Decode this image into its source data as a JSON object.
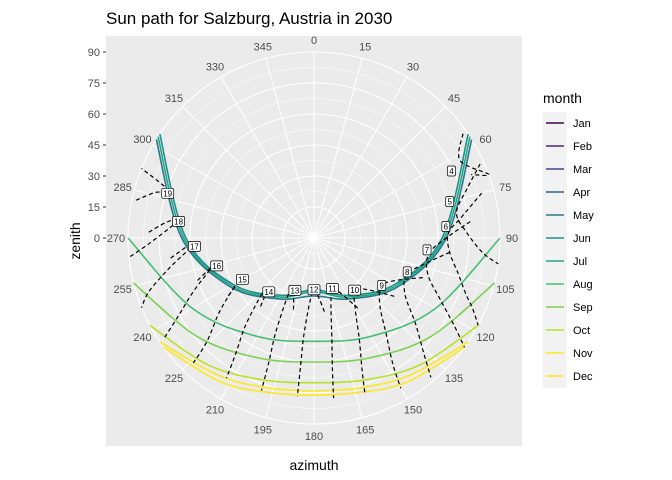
{
  "chart_data": {
    "type": "line",
    "projection": "polar",
    "title": "Sun path for Salzburg, Austria in 2030",
    "xlabel": "azimuth",
    "ylabel": "zenith",
    "azimuth_ticks": [
      "0",
      "15",
      "30",
      "45",
      "60",
      "75",
      "90",
      "105",
      "120",
      "135",
      "150",
      "165",
      "180",
      "195",
      "210",
      "225",
      "240",
      "255",
      "270",
      "285",
      "300",
      "315",
      "330",
      "345"
    ],
    "zenith_ticks": [
      "0",
      "15",
      "30",
      "45",
      "60",
      "75",
      "90"
    ],
    "legend": {
      "title": "month",
      "placement": "right"
    },
    "grid": true,
    "series": [
      {
        "name": "Jan",
        "color": "#440154"
      },
      {
        "name": "Feb",
        "color": "#482576"
      },
      {
        "name": "Mar",
        "color": "#414487"
      },
      {
        "name": "Apr",
        "color": "#35608D"
      },
      {
        "name": "May",
        "color": "#2A788E",
        "azimuth": [
          58,
          90,
          120,
          150,
          180,
          210,
          240,
          270,
          302
        ],
        "zenith": [
          90,
          64,
          47,
          34,
          28,
          34,
          47,
          64,
          90
        ]
      },
      {
        "name": "Jun",
        "color": "#21908C",
        "azimuth": [
          56,
          90,
          120,
          150,
          180,
          210,
          240,
          270,
          304
        ],
        "zenith": [
          90,
          62,
          45,
          32,
          25,
          32,
          45,
          62,
          90
        ]
      },
      {
        "name": "Jul",
        "color": "#22A884",
        "azimuth": [
          57,
          90,
          120,
          150,
          180,
          210,
          240,
          270,
          303
        ],
        "zenith": [
          90,
          63,
          46,
          33,
          26,
          33,
          46,
          63,
          90
        ]
      },
      {
        "name": "Aug",
        "color": "#43BF71",
        "azimuth": [
          90,
          120,
          150,
          180,
          210,
          240,
          270
        ],
        "zenith": [
          90,
          68,
          55,
          50,
          55,
          68,
          90
        ]
      },
      {
        "name": "Sep",
        "color": "#7AD151",
        "azimuth": [
          104,
          130,
          155,
          180,
          205,
          230,
          256
        ],
        "zenith": [
          90,
          74,
          64,
          60,
          64,
          74,
          90
        ]
      },
      {
        "name": "Oct",
        "color": "#BBDF27",
        "azimuth": [
          118,
          140,
          160,
          180,
          200,
          220,
          242
        ],
        "zenith": [
          90,
          80,
          73,
          70,
          73,
          80,
          90
        ]
      },
      {
        "name": "Nov",
        "color": "#FDE725",
        "azimuth": [
          124,
          145,
          162,
          180,
          198,
          215,
          236
        ],
        "zenith": [
          90,
          81,
          76,
          74,
          76,
          81,
          90
        ]
      },
      {
        "name": "Dec",
        "color": "#FDE725",
        "azimuth": [
          126,
          147,
          163,
          180,
          197,
          213,
          234
        ],
        "zenith": [
          90,
          83,
          78,
          76,
          78,
          83,
          90
        ]
      }
    ],
    "hour_labels": [
      {
        "label": "4",
        "azimuth": 64,
        "zenith": 74
      },
      {
        "label": "5",
        "azimuth": 75,
        "zenith": 68
      },
      {
        "label": "6",
        "azimuth": 85,
        "zenith": 64
      },
      {
        "label": "7",
        "azimuth": 96,
        "zenith": 55
      },
      {
        "label": "8",
        "azimuth": 110,
        "zenith": 48
      },
      {
        "label": "9",
        "azimuth": 125,
        "zenith": 40
      },
      {
        "label": "10",
        "azimuth": 142,
        "zenith": 32
      },
      {
        "label": "11",
        "azimuth": 160,
        "zenith": 26
      },
      {
        "label": "12",
        "azimuth": 180,
        "zenith": 25
      },
      {
        "label": "13",
        "azimuth": 200,
        "zenith": 27
      },
      {
        "label": "14",
        "azimuth": 220,
        "zenith": 34
      },
      {
        "label": "15",
        "azimuth": 240,
        "zenith": 40
      },
      {
        "label": "16",
        "azimuth": 254,
        "zenith": 49
      },
      {
        "label": "17",
        "azimuth": 266,
        "zenith": 58
      },
      {
        "label": "18",
        "azimuth": 277,
        "zenith": 66
      },
      {
        "label": "19",
        "azimuth": 287,
        "zenith": 74
      }
    ],
    "analemmas": [
      {
        "hour": "4",
        "azimuth": [
          55,
          62,
          70,
          68
        ],
        "zenith": [
          88,
          80,
          90,
          82
        ]
      },
      {
        "hour": "5",
        "azimuth": [
          66,
          72,
          80,
          88,
          95,
          98
        ],
        "zenith": [
          88,
          78,
          70,
          74,
          82,
          90
        ]
      },
      {
        "hour": "6",
        "azimuth": [
          75,
          82,
          88,
          96,
          104,
          110,
          114,
          118
        ],
        "zenith": [
          84,
          72,
          65,
          66,
          72,
          78,
          84,
          90
        ]
      },
      {
        "hour": "7",
        "azimuth": [
          84,
          90,
          98,
          108,
          116,
          122,
          126
        ],
        "zenith": [
          76,
          64,
          56,
          58,
          68,
          80,
          90
        ]
      },
      {
        "hour": "8",
        "azimuth": [
          96,
          104,
          112,
          122,
          130,
          136,
          140
        ],
        "zenith": [
          66,
          54,
          48,
          52,
          64,
          76,
          88
        ]
      },
      {
        "hour": "9",
        "azimuth": [
          110,
          118,
          126,
          136,
          143,
          148,
          150
        ],
        "zenith": [
          56,
          44,
          40,
          46,
          58,
          72,
          84
        ]
      },
      {
        "hour": "10",
        "azimuth": [
          126,
          134,
          142,
          150,
          156,
          160,
          162
        ],
        "zenith": [
          48,
          36,
          32,
          40,
          54,
          68,
          80
        ]
      },
      {
        "hour": "11",
        "azimuth": [
          148,
          154,
          160,
          166,
          170,
          172,
          173
        ],
        "zenith": [
          40,
          30,
          26,
          34,
          50,
          64,
          78
        ]
      },
      {
        "hour": "12",
        "azimuth": [
          172,
          176,
          180,
          184,
          186,
          186,
          186
        ],
        "zenith": [
          36,
          28,
          25,
          32,
          48,
          62,
          77
        ]
      },
      {
        "hour": "13",
        "azimuth": [
          196,
          200,
          204,
          204,
          202,
          200,
          199
        ],
        "zenith": [
          36,
          29,
          27,
          34,
          50,
          64,
          78
        ]
      },
      {
        "hour": "14",
        "azimuth": [
          218,
          222,
          224,
          222,
          218,
          214,
          212
        ],
        "zenith": [
          42,
          34,
          34,
          40,
          54,
          68,
          80
        ]
      },
      {
        "hour": "15",
        "azimuth": [
          236,
          240,
          242,
          238,
          232,
          226,
          224
        ],
        "zenith": [
          50,
          42,
          40,
          46,
          58,
          72,
          84
        ]
      },
      {
        "hour": "16",
        "azimuth": [
          250,
          254,
          256,
          252,
          246,
          240,
          236
        ],
        "zenith": [
          60,
          52,
          49,
          54,
          64,
          76,
          88
        ]
      },
      {
        "hour": "17",
        "azimuth": [
          262,
          266,
          268,
          264,
          258,
          252,
          248
        ],
        "zenith": [
          70,
          62,
          58,
          62,
          72,
          84,
          90
        ]
      },
      {
        "hour": "18",
        "azimuth": [
          272,
          276,
          278,
          274,
          268,
          264
        ],
        "zenith": [
          80,
          72,
          66,
          70,
          80,
          90
        ]
      },
      {
        "hour": "19",
        "azimuth": [
          282,
          286,
          288,
          292
        ],
        "zenith": [
          88,
          80,
          74,
          90
        ]
      }
    ]
  }
}
